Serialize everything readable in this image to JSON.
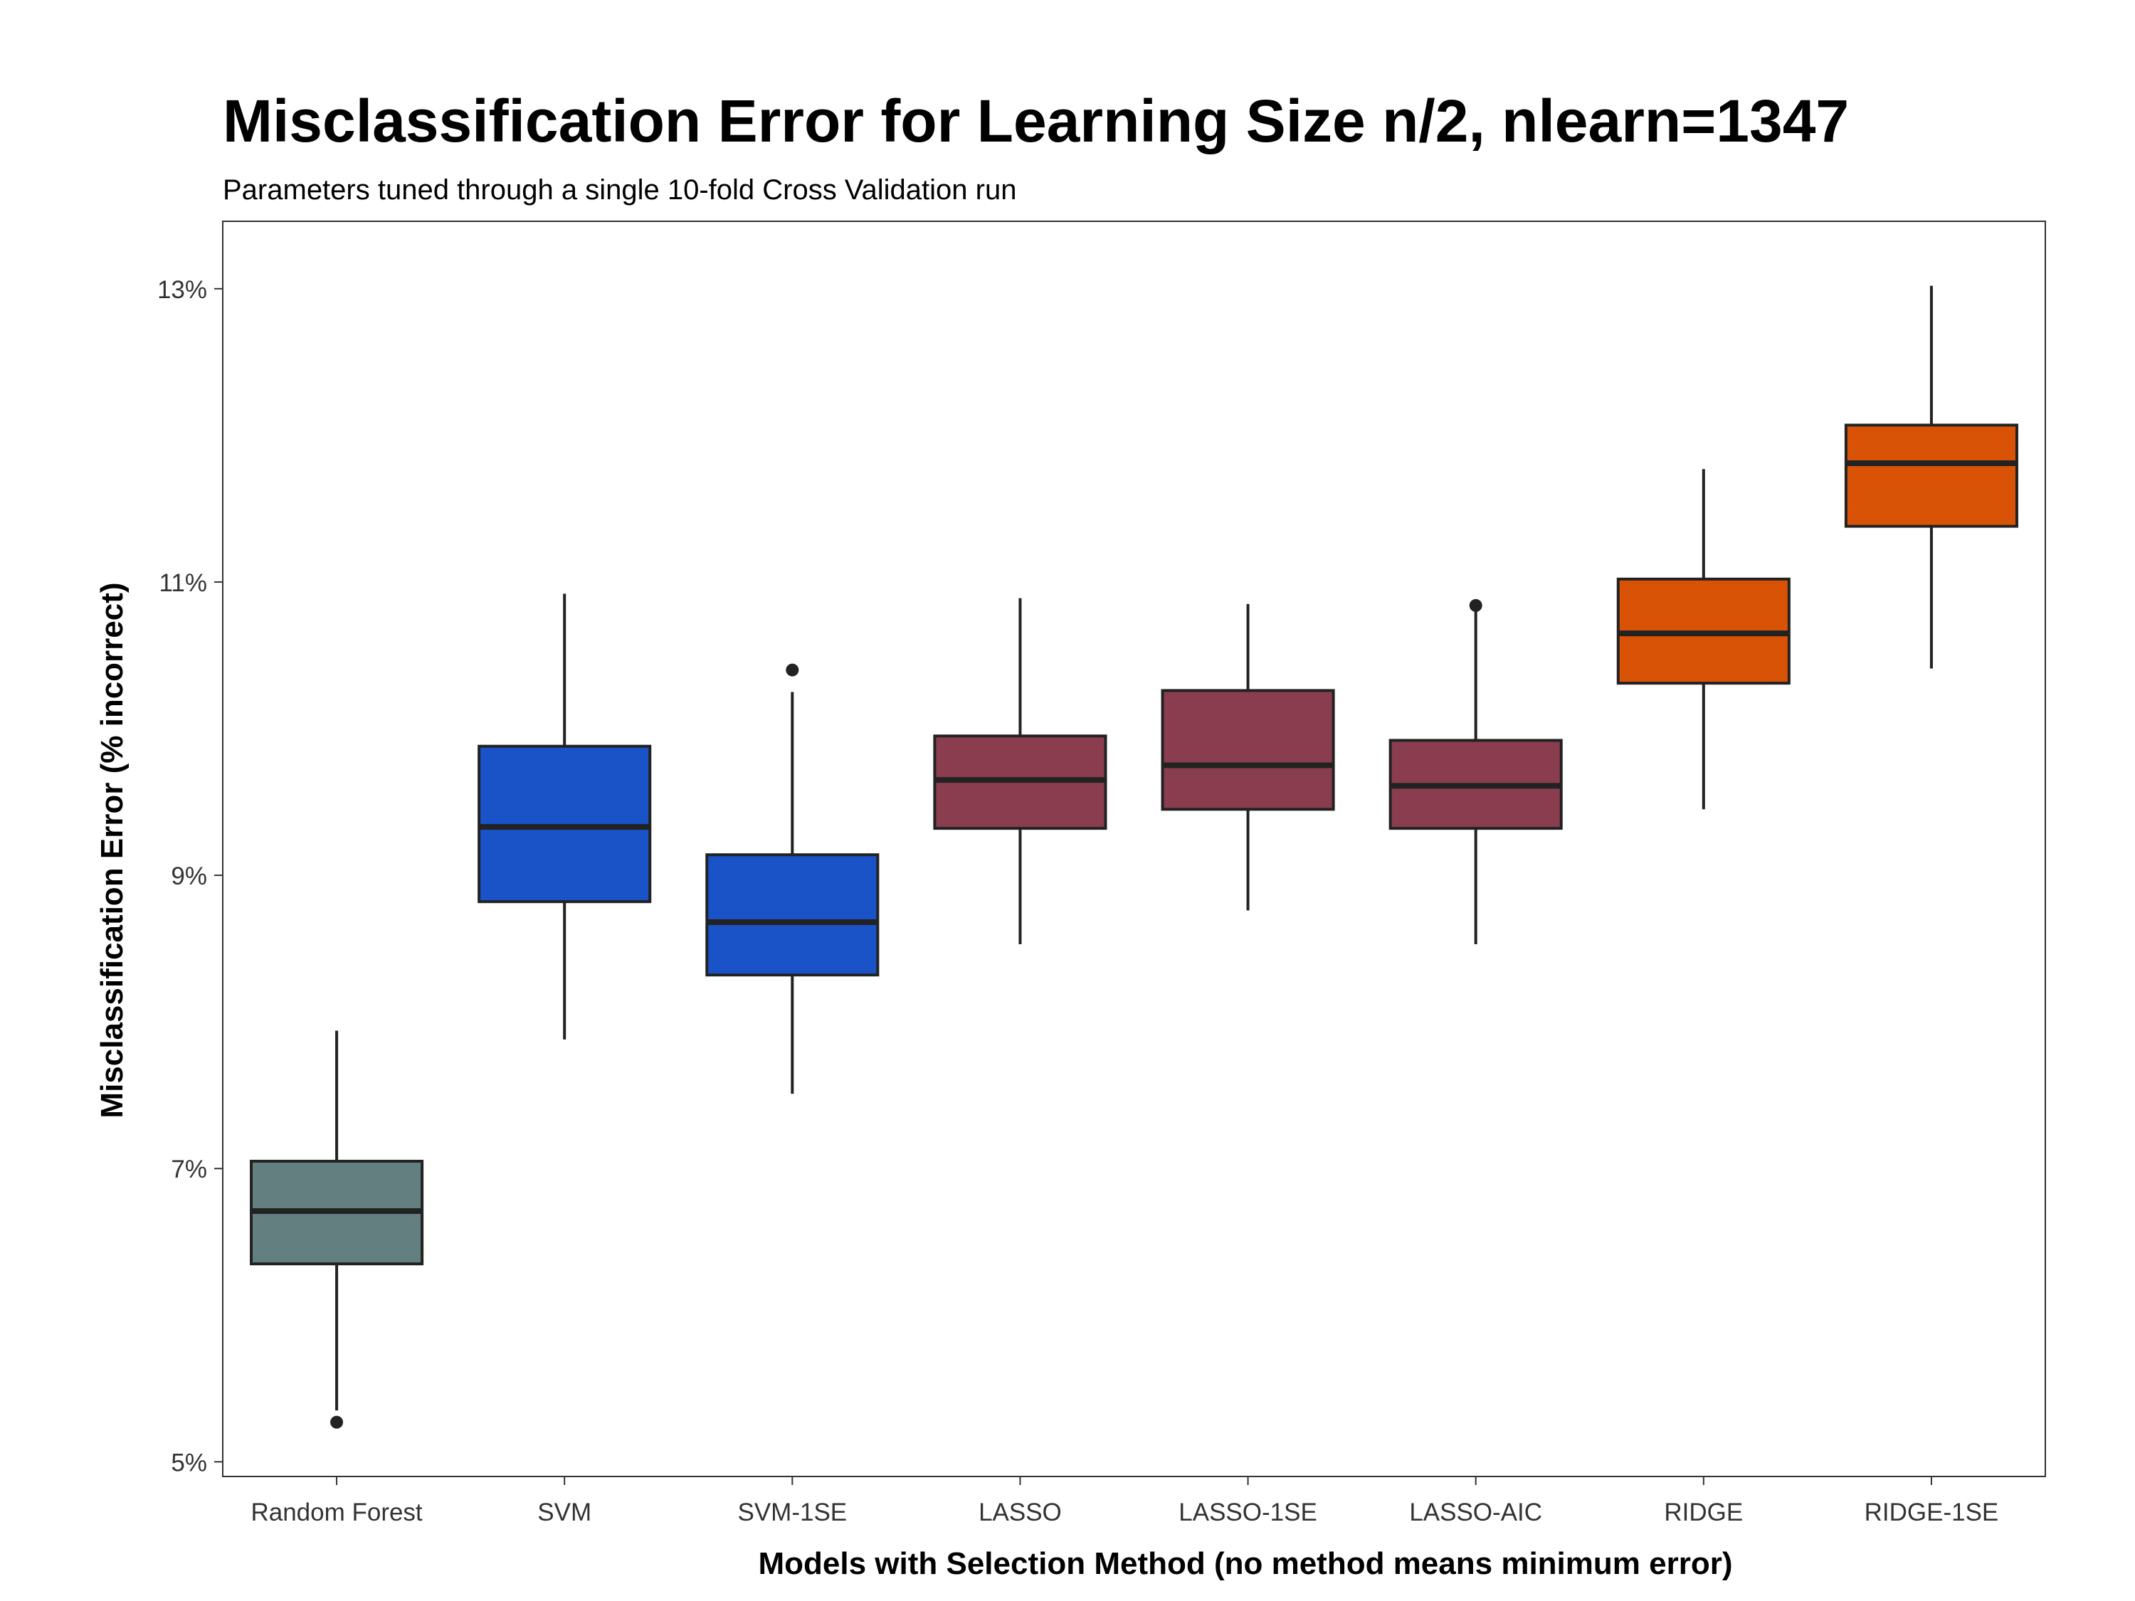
{
  "chart_data": {
    "type": "box",
    "title": "Misclassification Error for Learning Size n/2, nlearn=1347",
    "subtitle": "Parameters tuned through a single 10-fold Cross Validation run",
    "xlabel": "Models with Selection Method (no method means minimum error)",
    "ylabel": "Misclassification Error (% incorrect)",
    "ylim": [
      0.049,
      0.1346
    ],
    "yticks": [
      0.05,
      0.07,
      0.09,
      0.11,
      0.13
    ],
    "ytick_labels": [
      "5%",
      "7%",
      "9%",
      "11%",
      "13%"
    ],
    "grid": false,
    "legend": "none",
    "categories": [
      "Random Forest",
      "SVM",
      "SVM-1SE",
      "LASSO",
      "LASSO-1SE",
      "LASSO-AIC",
      "RIDGE",
      "RIDGE-1SE"
    ],
    "boxes": [
      {
        "min": 0.0535,
        "q1": 0.0635,
        "median": 0.0671,
        "q3": 0.0705,
        "max": 0.0794,
        "outliers": [
          0.0527
        ],
        "color": "#637f7f"
      },
      {
        "min": 0.0788,
        "q1": 0.0882,
        "median": 0.0933,
        "q3": 0.0988,
        "max": 0.1092,
        "outliers": [],
        "color": "#1a52c8"
      },
      {
        "min": 0.0751,
        "q1": 0.0832,
        "median": 0.0868,
        "q3": 0.0914,
        "max": 0.1025,
        "outliers": [
          0.104
        ],
        "color": "#1a52c8"
      },
      {
        "min": 0.0853,
        "q1": 0.0932,
        "median": 0.0965,
        "q3": 0.0995,
        "max": 0.1089,
        "outliers": [],
        "color": "#8b3d50"
      },
      {
        "min": 0.0876,
        "q1": 0.0945,
        "median": 0.0975,
        "q3": 0.1026,
        "max": 0.1085,
        "outliers": [],
        "color": "#8b3d50"
      },
      {
        "min": 0.0853,
        "q1": 0.0932,
        "median": 0.0961,
        "q3": 0.0992,
        "max": 0.1081,
        "outliers": [
          0.1084
        ],
        "color": "#8b3d50"
      },
      {
        "min": 0.0945,
        "q1": 0.1031,
        "median": 0.1065,
        "q3": 0.1102,
        "max": 0.1177,
        "outliers": [],
        "color": "#d95306"
      },
      {
        "min": 0.1041,
        "q1": 0.1138,
        "median": 0.1181,
        "q3": 0.1207,
        "max": 0.1302,
        "outliers": [],
        "color": "#d95306"
      }
    ]
  }
}
